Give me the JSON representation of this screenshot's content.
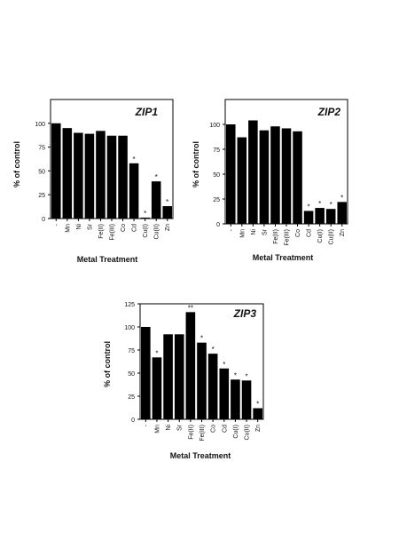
{
  "colors": {
    "bar": "#000000",
    "axis": "#000000",
    "background": "#ffffff"
  },
  "chart_data": [
    {
      "type": "bar",
      "title": "ZIP1",
      "ylabel": "% of control",
      "xlabel": "Metal Treatment",
      "ylim": [
        0,
        125
      ],
      "yticks": [
        0,
        25,
        50,
        75,
        100
      ],
      "ytick_labels": [
        "0",
        "25",
        "50",
        "75",
        "100"
      ],
      "categories": [
        "-",
        "Mn",
        "Ni",
        "Sr",
        "Fe(II)",
        "Fe(III)",
        "Co",
        "Cd",
        "Cu(I)",
        "Cu(II)",
        "Zn"
      ],
      "values": [
        100,
        95,
        90,
        89,
        92,
        87,
        87,
        58,
        1,
        39,
        13
      ],
      "markers": [
        "",
        "",
        "",
        "",
        "",
        "",
        "",
        "*",
        "*",
        "*",
        "*"
      ]
    },
    {
      "type": "bar",
      "title": "ZIP2",
      "ylabel": "% of control",
      "xlabel": "Metal Treatment",
      "ylim": [
        0,
        125
      ],
      "yticks": [
        0,
        25,
        50,
        75,
        100
      ],
      "ytick_labels": [
        "0",
        "25",
        "50",
        "75",
        "100"
      ],
      "categories": [
        "-",
        "Mn",
        "Ni",
        "Sr",
        "Fe(II)",
        "Fe(III)",
        "Co",
        "Cd",
        "Cu(I)",
        "Cu(II)",
        "Zn"
      ],
      "values": [
        100,
        87,
        104,
        94,
        98,
        96,
        93,
        13,
        16,
        15,
        22
      ],
      "markers": [
        "",
        "",
        "",
        "",
        "",
        "",
        "",
        "*",
        "*",
        "*",
        "*"
      ]
    },
    {
      "type": "bar",
      "title": "ZIP3",
      "ylabel": "% of control",
      "xlabel": "Metal Treatment",
      "ylim": [
        0,
        125
      ],
      "yticks": [
        0,
        25,
        50,
        75,
        100,
        125
      ],
      "ytick_labels": [
        "0",
        "25",
        "50",
        "75",
        "100",
        "125"
      ],
      "categories": [
        "-",
        "Mn",
        "Ni",
        "Sr",
        "Fe(II)",
        "Fe(III)",
        "Co",
        "Cd",
        "Cu(I)",
        "Cu(II)",
        "Zn"
      ],
      "values": [
        100,
        67,
        92,
        92,
        116,
        83,
        71,
        55,
        43,
        42,
        12
      ],
      "markers": [
        "",
        "*",
        "",
        "",
        "**",
        "*",
        "*",
        "*",
        "*",
        "*",
        "*"
      ]
    }
  ]
}
